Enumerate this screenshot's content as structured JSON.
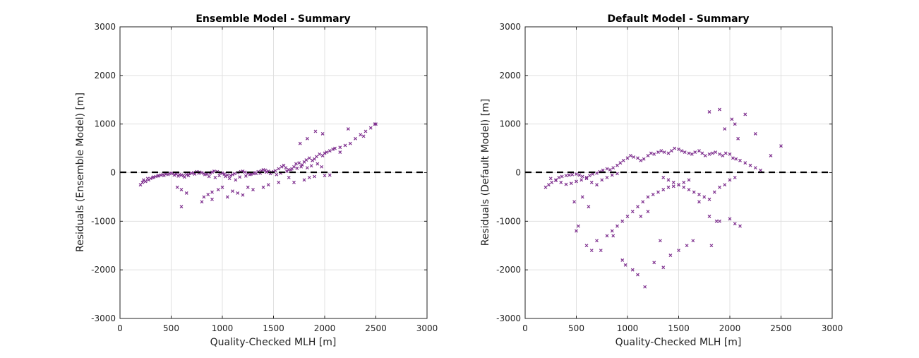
{
  "colors": {
    "marker": "#7e2f8e",
    "grid": "#e0e0e0",
    "axis": "#222222",
    "zero_line": "#000000"
  },
  "chart_data": [
    {
      "type": "scatter",
      "title": "Ensemble Model - Summary",
      "xlabel": "Quality-Checked MLH [m]",
      "ylabel": "Residuals (Ensemble Model) [m]",
      "xlim": [
        0,
        3000
      ],
      "ylim": [
        -3000,
        3000
      ],
      "xticks": [
        "0",
        "500",
        "1000",
        "1500",
        "2000",
        "2500",
        "3000"
      ],
      "yticks": [
        "-3000",
        "-2000",
        "-1000",
        "0",
        "1000",
        "2000",
        "3000"
      ],
      "grid": true,
      "zero_line": "dashed",
      "marker": "x",
      "series": [
        {
          "x": [
            200,
            220,
            250,
            280,
            300,
            320,
            350,
            380,
            400,
            420,
            450,
            480,
            500,
            520,
            550,
            580,
            600,
            620,
            650,
            680,
            700,
            720,
            750,
            780,
            800,
            820,
            850,
            880,
            900,
            920,
            950,
            980,
            1000,
            1020,
            1050,
            1080,
            1100,
            1120,
            1150,
            1180,
            1200,
            1220,
            1250,
            1280,
            1300,
            1320,
            1350,
            1380,
            1400,
            1420,
            1450,
            1480,
            1500,
            1520,
            1550,
            1580,
            1600,
            1620,
            1650,
            1680,
            1700,
            1720,
            1750,
            1780,
            1800,
            1820,
            1850,
            1880,
            1900,
            1920,
            1950,
            1980,
            2000,
            2020,
            2050,
            2080,
            2100,
            2150,
            2200,
            2250,
            2300,
            2350,
            2400,
            2450,
            2500,
            230,
            270,
            330,
            370,
            430,
            470,
            530,
            570,
            630,
            670,
            730,
            770,
            830,
            870,
            930,
            970,
            1030,
            1070,
            1130,
            1170,
            1230,
            1270,
            1330,
            1370,
            1430,
            1470,
            1530,
            1570,
            1630,
            1670,
            1730,
            1770,
            1830,
            1870,
            1930,
            1970,
            560,
            600,
            650,
            820,
            860,
            900,
            960,
            1000,
            1100,
            1150,
            1200,
            1300,
            1400,
            1450,
            1700,
            1800,
            1850,
            1900,
            2000,
            2050,
            1760,
            1830,
            1910,
            1980,
            2230,
            2380,
            2490,
            600,
            800,
            900,
            1050,
            1250,
            1550,
            1650,
            2150
          ],
          "y": [
            -250,
            -200,
            -180,
            -150,
            -120,
            -100,
            -80,
            -60,
            -50,
            -40,
            -30,
            -20,
            -10,
            -20,
            -30,
            -40,
            -50,
            -60,
            -40,
            -20,
            -10,
            0,
            20,
            10,
            0,
            -20,
            -30,
            -10,
            10,
            30,
            20,
            0,
            -10,
            -30,
            -50,
            -60,
            -40,
            -20,
            0,
            20,
            30,
            10,
            -10,
            -30,
            -20,
            0,
            20,
            40,
            60,
            50,
            30,
            10,
            20,
            40,
            80,
            120,
            150,
            100,
            60,
            80,
            120,
            180,
            200,
            160,
            220,
            260,
            300,
            250,
            280,
            330,
            380,
            350,
            400,
            420,
            450,
            480,
            500,
            520,
            560,
            600,
            700,
            780,
            850,
            920,
            1000,
            -150,
            -120,
            -90,
            -70,
            -60,
            -40,
            -50,
            -70,
            -90,
            -60,
            -30,
            -10,
            -40,
            -80,
            -100,
            -60,
            -80,
            -120,
            -150,
            -90,
            -70,
            -40,
            -20,
            -10,
            10,
            -20,
            -40,
            -10,
            30,
            60,
            90,
            120,
            100,
            140,
            180,
            120,
            -300,
            -350,
            -420,
            -500,
            -450,
            -400,
            -350,
            -300,
            -380,
            -420,
            -460,
            -350,
            -300,
            -250,
            -200,
            -150,
            -100,
            -80,
            -60,
            -50,
            600,
            700,
            850,
            800,
            900,
            750,
            1000,
            -700,
            -600,
            -550,
            -500,
            -300,
            -200,
            -100,
            420
          ]
        }
      ]
    },
    {
      "type": "scatter",
      "title": "Default Model - Summary",
      "xlabel": "Quality-Checked MLH [m]",
      "ylabel": "Residuals (Default Model) [m]",
      "xlim": [
        0,
        3000
      ],
      "ylim": [
        -3000,
        3000
      ],
      "xticks": [
        "0",
        "500",
        "1000",
        "1500",
        "2000",
        "2500",
        "3000"
      ],
      "yticks": [
        "-3000",
        "-2000",
        "-1000",
        "0",
        "1000",
        "2000",
        "3000"
      ],
      "grid": true,
      "zero_line": "dashed",
      "marker": "x",
      "series": [
        {
          "x": [
            200,
            230,
            260,
            300,
            330,
            360,
            400,
            430,
            460,
            500,
            530,
            560,
            600,
            630,
            660,
            700,
            730,
            760,
            800,
            830,
            860,
            900,
            930,
            960,
            1000,
            1030,
            1060,
            1100,
            1130,
            1160,
            1200,
            1230,
            1260,
            1300,
            1330,
            1360,
            1400,
            1430,
            1460,
            1500,
            1530,
            1560,
            1600,
            1630,
            1660,
            1700,
            1730,
            1760,
            1800,
            1830,
            1860,
            1900,
            1930,
            1960,
            2000,
            2030,
            2060,
            2100,
            2150,
            2200,
            2250,
            2300,
            2400,
            2500,
            250,
            300,
            350,
            400,
            450,
            500,
            550,
            600,
            650,
            700,
            750,
            800,
            850,
            900,
            1350,
            1400,
            1450,
            1500,
            1550,
            1600,
            1650,
            1700,
            1750,
            1800,
            1850,
            1900,
            1950,
            2000,
            2050,
            500,
            520,
            600,
            650,
            700,
            800,
            850,
            900,
            950,
            1000,
            1050,
            1100,
            1150,
            1200,
            1250,
            1300,
            1350,
            1400,
            1450,
            1500,
            1550,
            1600,
            1700,
            1800,
            1900,
            2050,
            950,
            980,
            1050,
            1100,
            1170,
            1260,
            1350,
            1420,
            1500,
            1580,
            1640,
            1820,
            1870,
            2000,
            2100,
            1800,
            1900,
            1950,
            2020,
            2050,
            2080,
            2150,
            2250,
            480,
            560,
            620,
            740,
            860,
            1130,
            1200,
            1320
          ],
          "y": [
            -300,
            -250,
            -200,
            -150,
            -100,
            -80,
            -60,
            -50,
            -40,
            -30,
            -50,
            -80,
            -100,
            -60,
            -30,
            -10,
            20,
            50,
            80,
            60,
            100,
            150,
            200,
            250,
            300,
            350,
            320,
            300,
            250,
            280,
            350,
            400,
            380,
            420,
            450,
            420,
            400,
            450,
            500,
            480,
            450,
            420,
            400,
            380,
            420,
            450,
            400,
            350,
            380,
            400,
            420,
            380,
            350,
            400,
            380,
            300,
            280,
            250,
            200,
            150,
            100,
            50,
            350,
            550,
            -120,
            -160,
            -200,
            -240,
            -220,
            -180,
            -150,
            -120,
            -200,
            -250,
            -150,
            -100,
            -50,
            -20,
            -100,
            -150,
            -200,
            -250,
            -300,
            -350,
            -400,
            -450,
            -500,
            -550,
            -400,
            -300,
            -250,
            -150,
            -100,
            -1200,
            -1100,
            -1500,
            -1600,
            -1400,
            -1300,
            -1200,
            -1100,
            -1000,
            -900,
            -800,
            -700,
            -600,
            -500,
            -450,
            -400,
            -350,
            -300,
            -280,
            -250,
            -200,
            -150,
            -600,
            -900,
            -1000,
            -1050,
            -1800,
            -1900,
            -2000,
            -2100,
            -2350,
            -1850,
            -1950,
            -1700,
            -1600,
            -1500,
            -1400,
            -1500,
            -1000,
            -950,
            -1100,
            1250,
            1300,
            900,
            1100,
            1000,
            700,
            1200,
            800,
            -600,
            -500,
            -700,
            -1600,
            -1300,
            -900,
            -800,
            -1400
          ]
        }
      ]
    }
  ]
}
